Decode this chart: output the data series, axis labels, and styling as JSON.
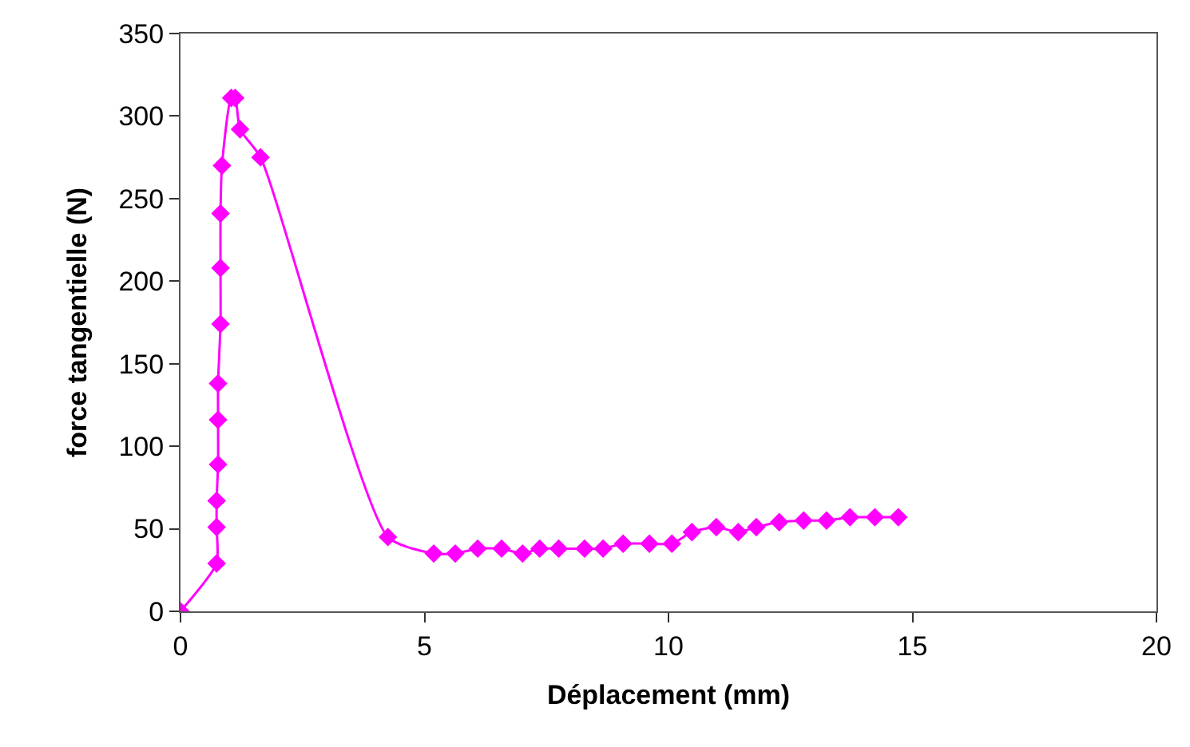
{
  "chart_data": {
    "type": "line",
    "xlabel": "Déplacement (mm)",
    "ylabel": "force tangentielle (N)",
    "x": [
      0,
      0.74,
      0.74,
      0.74,
      0.77,
      0.77,
      0.77,
      0.82,
      0.82,
      0.82,
      0.85,
      1.04,
      1.12,
      1.22,
      1.64,
      4.25,
      5.19,
      5.63,
      6.09,
      6.58,
      7.01,
      7.36,
      7.75,
      8.28,
      8.66,
      9.07,
      9.61,
      10.07,
      10.48,
      10.98,
      11.43,
      11.8,
      12.27,
      12.77,
      13.24,
      13.72,
      14.23,
      14.71
    ],
    "series": [
      {
        "color": "#ff00ff",
        "values": [
          0,
          29,
          51,
          67,
          89,
          116,
          138,
          174,
          208,
          241,
          270,
          311,
          311,
          292,
          275,
          45,
          35,
          35,
          38,
          38,
          35,
          38,
          38,
          38,
          38,
          41,
          41,
          41,
          48,
          51,
          48,
          51,
          54,
          55,
          55,
          57,
          57,
          57
        ]
      }
    ],
    "xlim": [
      0,
      20
    ],
    "xticks": [
      0,
      5,
      10,
      15,
      20
    ],
    "ylim": [
      0,
      350
    ],
    "yticks": [
      0,
      50,
      100,
      150,
      200,
      250,
      300,
      350
    ],
    "marker": "diamond",
    "line_style": "solid"
  }
}
